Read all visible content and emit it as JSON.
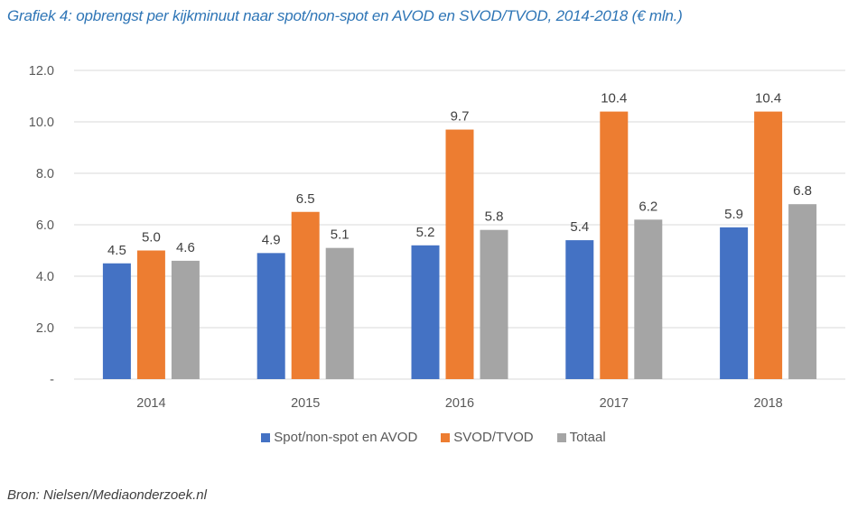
{
  "title": "Grafiek  4: opbrengst per kijkminuut naar spot/non-spot en AVOD en SVOD/TVOD, 2014-2018 (€ mln.)",
  "source": "Bron: Nielsen/Mediaonderzoek.nl",
  "chart_data": {
    "type": "bar",
    "title": "Grafiek  4: opbrengst per kijkminuut naar spot/non-spot en AVOD en SVOD/TVOD, 2014-2018 (€ mln.)",
    "xlabel": "",
    "ylabel": "",
    "categories": [
      "2014",
      "2015",
      "2016",
      "2017",
      "2018"
    ],
    "series": [
      {
        "name": "Spot/non-spot en AVOD",
        "color": "#4472c4",
        "values": [
          4.5,
          4.9,
          5.2,
          5.4,
          5.9
        ]
      },
      {
        "name": "SVOD/TVOD",
        "color": "#ed7d31",
        "values": [
          5.0,
          6.5,
          9.7,
          10.4,
          10.4
        ]
      },
      {
        "name": "Totaal",
        "color": "#a5a5a5",
        "values": [
          4.6,
          5.1,
          5.8,
          6.2,
          6.8
        ]
      }
    ],
    "ylim": [
      0,
      12
    ],
    "yticks": [
      0,
      2,
      4,
      6,
      8,
      10,
      12
    ],
    "ytick_labels": [
      "-",
      "2.0",
      "4.0",
      "6.0",
      "8.0",
      "10.0",
      "12.0"
    ],
    "grid": true,
    "legend_position": "bottom",
    "data_labels": true
  }
}
